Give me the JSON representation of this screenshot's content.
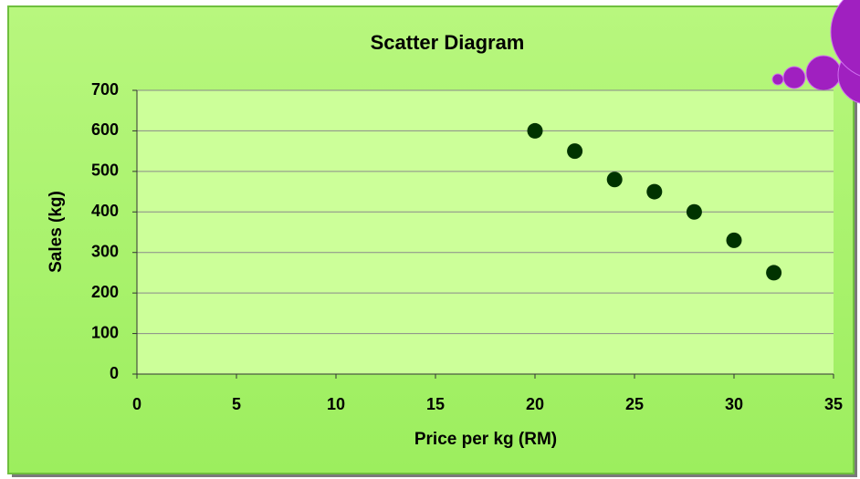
{
  "chart_data": {
    "type": "scatter",
    "title": "Scatter Diagram",
    "x_label": "Price per kg (RM)",
    "y_label": "Sales (kg)",
    "x": [
      20,
      22,
      24,
      26,
      28,
      30,
      32
    ],
    "values": [
      600,
      550,
      480,
      450,
      400,
      330,
      250
    ],
    "color": "#003300",
    "xlim": [
      0,
      35
    ],
    "xticks": [
      0,
      5,
      10,
      15,
      20,
      25,
      30,
      35
    ],
    "ylim": [
      0,
      700
    ],
    "yticks": [
      0,
      100,
      200,
      300,
      400,
      500,
      600,
      700
    ],
    "grid": true
  }
}
